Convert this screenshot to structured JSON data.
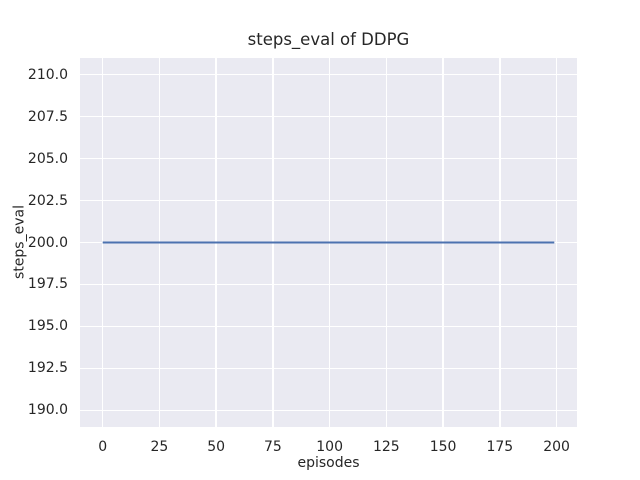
{
  "figure": {
    "background": "#ffffff",
    "text_color": "#262626"
  },
  "chart_data": {
    "type": "line",
    "title": "steps_eval of DDPG",
    "xlabel": "episodes",
    "ylabel": "steps_eval",
    "x_ticks": [
      0,
      25,
      50,
      75,
      100,
      125,
      150,
      175,
      200
    ],
    "y_ticks": [
      190.0,
      192.5,
      195.0,
      197.5,
      200.0,
      202.5,
      205.0,
      207.5,
      210.0
    ],
    "y_tick_decimals": 1,
    "xlim": [
      -10,
      209
    ],
    "ylim": [
      189,
      211
    ],
    "grid": true,
    "legend": "none",
    "plot_background": "#eaeaf2",
    "grid_color": "#ffffff",
    "series": [
      {
        "name": "steps_eval",
        "color": "#4c72b0",
        "line_width": 2,
        "points": [
          [
            0,
            200
          ],
          [
            199,
            200
          ]
        ],
        "description": "constant value 200 for every episode from 0 to 199"
      }
    ]
  }
}
